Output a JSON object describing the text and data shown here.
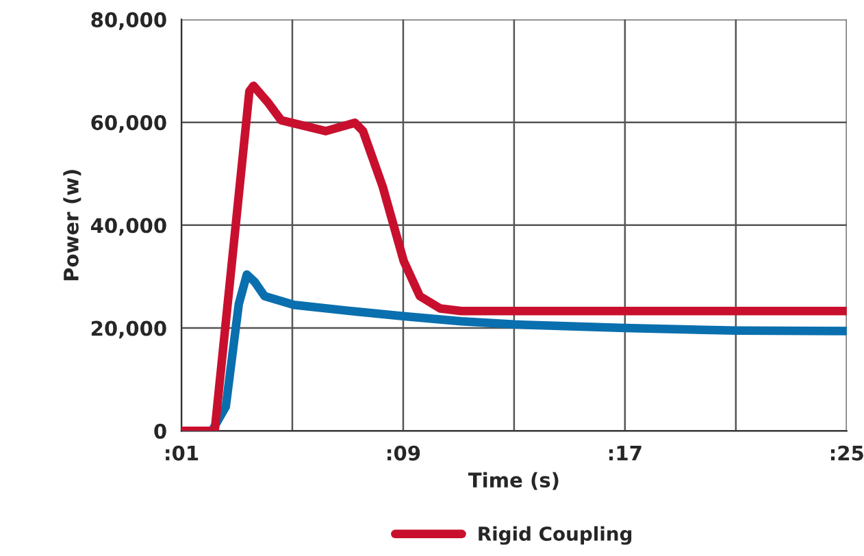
{
  "chart_data": {
    "type": "line",
    "xlabel": "Time (s)",
    "ylabel": "Power (w)",
    "xlim": [
      1,
      25
    ],
    "xticks": [
      {
        "value": 1,
        "label": ":01"
      },
      {
        "value": 5,
        "label": null
      },
      {
        "value": 9,
        "label": ":09"
      },
      {
        "value": 13,
        "label": null
      },
      {
        "value": 17,
        "label": ":17"
      },
      {
        "value": 21,
        "label": null
      },
      {
        "value": 25,
        "label": ":25"
      }
    ],
    "ylim": [
      0,
      80000
    ],
    "yticks": [
      {
        "value": 0,
        "label": "0"
      },
      {
        "value": 20000,
        "label": "20,000"
      },
      {
        "value": 40000,
        "label": "40,000"
      },
      {
        "value": 60000,
        "label": "60,000"
      },
      {
        "value": 80000,
        "label": "80,000"
      }
    ],
    "grid": true,
    "legend": "bottom",
    "marker": "none",
    "line_style": "solid",
    "series": [
      {
        "color": "#0a6fae",
        "x": [
          1,
          2.1,
          2.6,
          3.07,
          3.36,
          3.64,
          4.0,
          5.06,
          7.3,
          9,
          11.1,
          13,
          17,
          21,
          25
        ],
        "values": [
          0,
          0,
          4700,
          24700,
          30400,
          29000,
          26200,
          24500,
          23200,
          22300,
          21300,
          20700,
          20000,
          19500,
          19400
        ]
      },
      {
        "name": "Rigid Coupling",
        "color": "#c8102e",
        "x": [
          1,
          2.2,
          3.45,
          3.6,
          4.1,
          4.6,
          6.2,
          7.26,
          7.55,
          8.26,
          9.02,
          9.6,
          10.34,
          11.1,
          25
        ],
        "values": [
          0,
          0,
          66000,
          67100,
          64000,
          60400,
          58300,
          59900,
          58300,
          47500,
          33000,
          26200,
          23800,
          23300,
          23300
        ]
      }
    ]
  }
}
